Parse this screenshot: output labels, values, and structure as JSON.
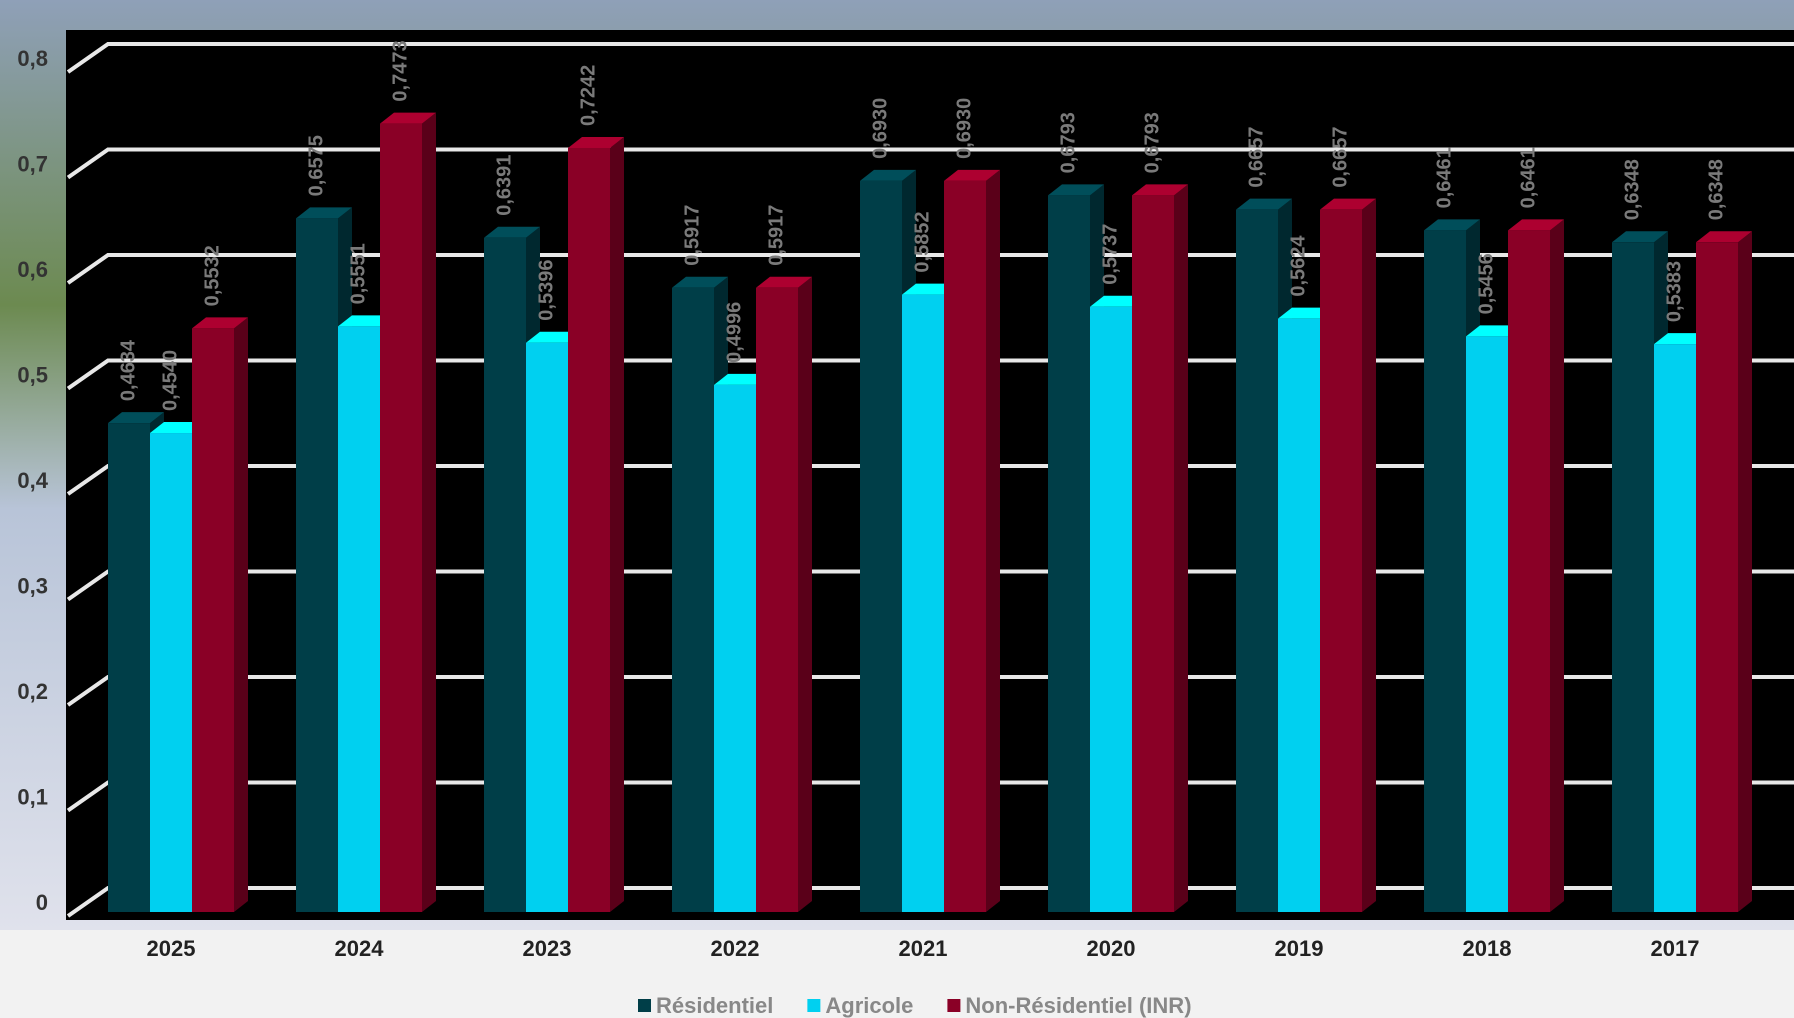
{
  "chart_data": {
    "type": "bar3d",
    "categories": [
      "2025",
      "2024",
      "2023",
      "2022",
      "2021",
      "2020",
      "2019",
      "2018",
      "2017"
    ],
    "series": [
      {
        "name": "Résidentiel",
        "color": "#003e48",
        "values": [
          0.4634,
          0.6575,
          0.6391,
          0.5917,
          0.693,
          0.6793,
          0.6657,
          0.6461,
          0.6348
        ],
        "value_labels": [
          "0,4634",
          "0,6575",
          "0,6391",
          "0,5917",
          "0,6930",
          "0,6793",
          "0,6657",
          "0,6461",
          "0,6348"
        ]
      },
      {
        "name": "Agricole",
        "color": "#00d0f0",
        "values": [
          0.454,
          0.5551,
          0.5396,
          0.4996,
          0.5852,
          0.5737,
          0.5624,
          0.5456,
          0.5383
        ],
        "value_labels": [
          "0,4540",
          "0,5551",
          "0,5396",
          "0,4996",
          "0,5852",
          "0,5737",
          "0,5624",
          "0,5456",
          "0,5383"
        ]
      },
      {
        "name": "Non-Résidentiel (INR)",
        "color": "#8a0026",
        "values": [
          0.5532,
          0.7473,
          0.7242,
          0.5917,
          0.693,
          0.6793,
          0.6657,
          0.6461,
          0.6348
        ],
        "value_labels": [
          "0,5532",
          "0,7473",
          "0,7242",
          "0,5917",
          "0,6930",
          "0,6793",
          "0,6657",
          "0,6461",
          "0,6348"
        ]
      }
    ],
    "ylim": [
      0,
      0.8
    ],
    "yticks": [
      0,
      {
        "value": 0.1,
        "label": "0,1"
      },
      {
        "value": 0.2,
        "label": "0,2"
      },
      {
        "value": 0.3,
        "label": "0,3"
      },
      {
        "value": 0.4,
        "label": "0,4"
      },
      {
        "value": 0.5,
        "label": "0,5"
      },
      {
        "value": 0.6,
        "label": "0,6"
      },
      {
        "value": 0.7,
        "label": "0,7"
      },
      {
        "value": 0.8,
        "label": "0,8"
      }
    ],
    "grid": true
  }
}
